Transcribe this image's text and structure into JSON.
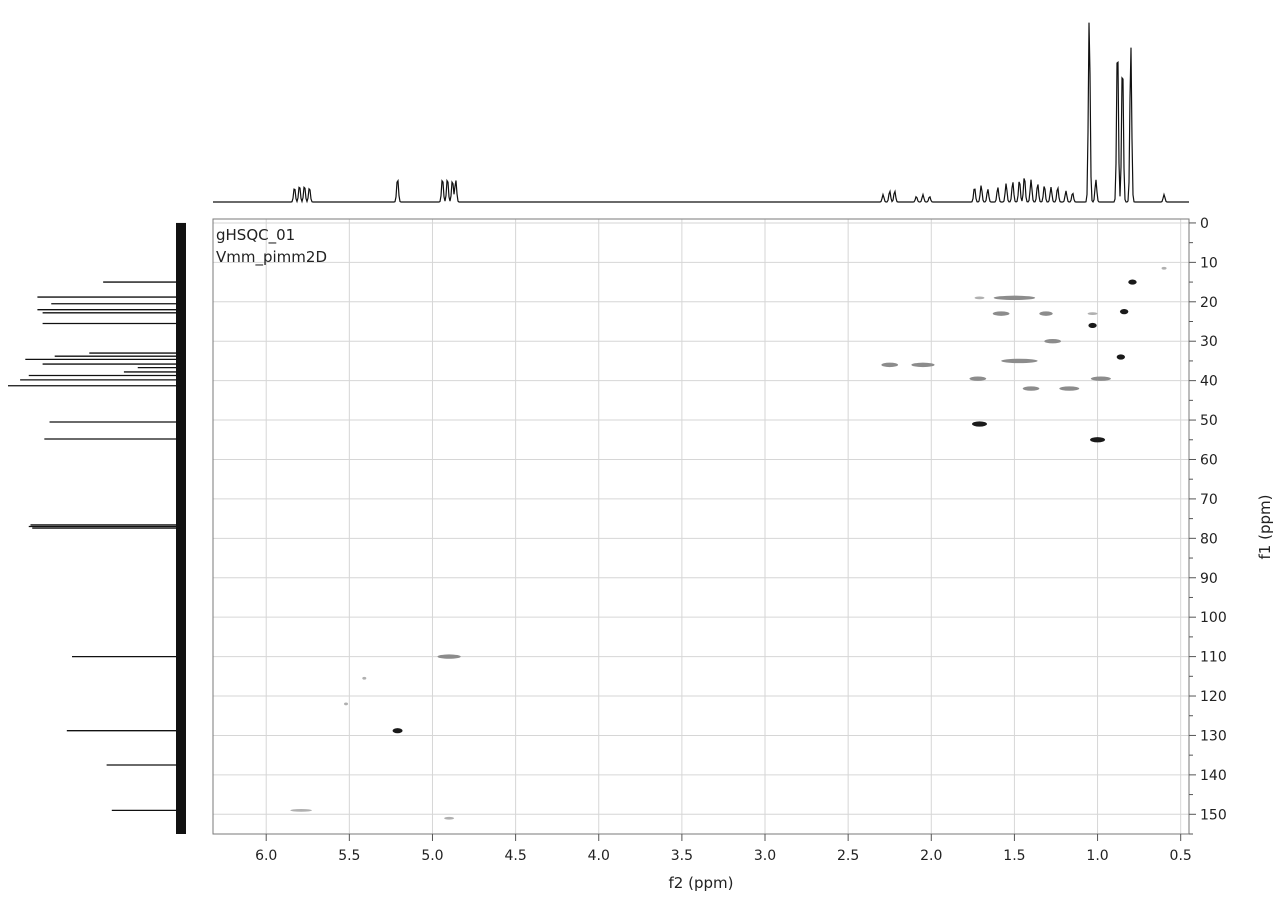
{
  "chart_data": {
    "type": "scatter",
    "subtype": "2D NMR gHSQC contour plot with 1D projections",
    "annotations": [
      "gHSQC_01",
      "Vmm_pimm2D"
    ],
    "xlabel": "f2 (ppm)",
    "ylabel": "f1 (ppm)",
    "x_axis": {
      "reversed": true,
      "xlim": [
        6.32,
        0.45
      ],
      "ticks": [
        6.0,
        5.5,
        5.0,
        4.5,
        4.0,
        3.5,
        3.0,
        2.5,
        2.0,
        1.5,
        1.0,
        0.5
      ],
      "tick_labels": [
        "6.0",
        "5.5",
        "5.0",
        "4.5",
        "4.0",
        "3.5",
        "3.0",
        "2.5",
        "2.0",
        "1.5",
        "1.0",
        "0.5"
      ]
    },
    "y_axis": {
      "reversed": true,
      "ylim": [
        -1,
        155
      ],
      "ticks": [
        0,
        10,
        20,
        30,
        40,
        50,
        60,
        70,
        80,
        90,
        100,
        110,
        120,
        130,
        140,
        150
      ],
      "tick_labels": [
        "0",
        "10",
        "20",
        "30",
        "40",
        "50",
        "60",
        "70",
        "80",
        "90",
        "100",
        "110",
        "120",
        "130",
        "140",
        "150"
      ],
      "position": "right"
    },
    "grid": true,
    "cross_peaks": [
      {
        "x": 5.79,
        "y": 149.0,
        "w": 0.13,
        "intensity": "weak"
      },
      {
        "x": 5.52,
        "y": 122.0,
        "w": 0.02,
        "intensity": "weak"
      },
      {
        "x": 5.41,
        "y": 115.5,
        "w": 0.02,
        "intensity": "weak"
      },
      {
        "x": 5.21,
        "y": 128.8,
        "w": 0.06,
        "intensity": "strong"
      },
      {
        "x": 4.9,
        "y": 110.0,
        "w": 0.14,
        "intensity": "medium"
      },
      {
        "x": 4.9,
        "y": 151.0,
        "w": 0.06,
        "intensity": "weak"
      },
      {
        "x": 2.25,
        "y": 36.0,
        "w": 0.1,
        "intensity": "medium"
      },
      {
        "x": 2.05,
        "y": 36.0,
        "w": 0.14,
        "intensity": "medium"
      },
      {
        "x": 1.72,
        "y": 39.5,
        "w": 0.1,
        "intensity": "medium"
      },
      {
        "x": 1.71,
        "y": 51.0,
        "w": 0.09,
        "intensity": "strong"
      },
      {
        "x": 1.71,
        "y": 19.0,
        "w": 0.06,
        "intensity": "weak"
      },
      {
        "x": 1.5,
        "y": 19.0,
        "w": 0.25,
        "intensity": "medium"
      },
      {
        "x": 1.58,
        "y": 23.0,
        "w": 0.1,
        "intensity": "medium"
      },
      {
        "x": 1.47,
        "y": 35.0,
        "w": 0.22,
        "intensity": "medium"
      },
      {
        "x": 1.4,
        "y": 42.0,
        "w": 0.1,
        "intensity": "medium"
      },
      {
        "x": 1.31,
        "y": 23.0,
        "w": 0.08,
        "intensity": "medium"
      },
      {
        "x": 1.27,
        "y": 30.0,
        "w": 0.1,
        "intensity": "medium"
      },
      {
        "x": 1.17,
        "y": 42.0,
        "w": 0.12,
        "intensity": "medium"
      },
      {
        "x": 1.03,
        "y": 26.0,
        "w": 0.05,
        "intensity": "strong"
      },
      {
        "x": 0.98,
        "y": 39.5,
        "w": 0.12,
        "intensity": "medium"
      },
      {
        "x": 1.0,
        "y": 55.0,
        "w": 0.09,
        "intensity": "strong"
      },
      {
        "x": 1.03,
        "y": 23.0,
        "w": 0.06,
        "intensity": "weak"
      },
      {
        "x": 0.86,
        "y": 34.0,
        "w": 0.05,
        "intensity": "strong"
      },
      {
        "x": 0.84,
        "y": 22.5,
        "w": 0.05,
        "intensity": "strong"
      },
      {
        "x": 0.79,
        "y": 15.0,
        "w": 0.05,
        "intensity": "strong"
      },
      {
        "x": 0.6,
        "y": 11.5,
        "w": 0.03,
        "intensity": "weak"
      }
    ],
    "proton_projection": [
      {
        "x": 5.83,
        "h": 0.08
      },
      {
        "x": 5.8,
        "h": 0.09
      },
      {
        "x": 5.77,
        "h": 0.09
      },
      {
        "x": 5.74,
        "h": 0.08
      },
      {
        "x": 5.21,
        "h": 0.13
      },
      {
        "x": 4.94,
        "h": 0.13
      },
      {
        "x": 4.91,
        "h": 0.13
      },
      {
        "x": 4.88,
        "h": 0.12
      },
      {
        "x": 4.86,
        "h": 0.12
      },
      {
        "x": 2.29,
        "h": 0.04
      },
      {
        "x": 2.25,
        "h": 0.06
      },
      {
        "x": 2.22,
        "h": 0.06
      },
      {
        "x": 2.09,
        "h": 0.03
      },
      {
        "x": 2.05,
        "h": 0.04
      },
      {
        "x": 2.01,
        "h": 0.03
      },
      {
        "x": 1.74,
        "h": 0.08
      },
      {
        "x": 1.7,
        "h": 0.09
      },
      {
        "x": 1.66,
        "h": 0.07
      },
      {
        "x": 1.6,
        "h": 0.08
      },
      {
        "x": 1.55,
        "h": 0.1
      },
      {
        "x": 1.51,
        "h": 0.11
      },
      {
        "x": 1.47,
        "h": 0.12
      },
      {
        "x": 1.44,
        "h": 0.14
      },
      {
        "x": 1.4,
        "h": 0.12
      },
      {
        "x": 1.36,
        "h": 0.1
      },
      {
        "x": 1.32,
        "h": 0.09
      },
      {
        "x": 1.28,
        "h": 0.08
      },
      {
        "x": 1.24,
        "h": 0.08
      },
      {
        "x": 1.19,
        "h": 0.06
      },
      {
        "x": 1.15,
        "h": 0.05
      },
      {
        "x": 1.05,
        "h": 1.0
      },
      {
        "x": 1.01,
        "h": 0.12
      },
      {
        "x": 0.88,
        "h": 0.88
      },
      {
        "x": 0.85,
        "h": 0.78
      },
      {
        "x": 0.8,
        "h": 0.85
      },
      {
        "x": 0.6,
        "h": 0.04
      }
    ],
    "carbon_projection": [
      {
        "y": 15.0,
        "h": 0.45
      },
      {
        "y": 18.8,
        "h": 0.83
      },
      {
        "y": 20.5,
        "h": 0.75
      },
      {
        "y": 22.0,
        "h": 0.83
      },
      {
        "y": 22.8,
        "h": 0.8
      },
      {
        "y": 25.5,
        "h": 0.8
      },
      {
        "y": 33.0,
        "h": 0.53
      },
      {
        "y": 33.8,
        "h": 0.73
      },
      {
        "y": 34.6,
        "h": 0.9
      },
      {
        "y": 35.8,
        "h": 0.8
      },
      {
        "y": 36.7,
        "h": 0.25
      },
      {
        "y": 37.8,
        "h": 0.33
      },
      {
        "y": 38.7,
        "h": 0.88
      },
      {
        "y": 39.8,
        "h": 0.93
      },
      {
        "y": 41.3,
        "h": 1.0
      },
      {
        "y": 50.5,
        "h": 0.76
      },
      {
        "y": 54.8,
        "h": 0.79
      },
      {
        "y": 76.6,
        "h": 0.87
      },
      {
        "y": 77.0,
        "h": 0.88
      },
      {
        "y": 77.4,
        "h": 0.86
      },
      {
        "y": 110.0,
        "h": 0.63
      },
      {
        "y": 128.8,
        "h": 0.66
      },
      {
        "y": 137.5,
        "h": 0.43
      },
      {
        "y": 149.0,
        "h": 0.4
      }
    ]
  }
}
